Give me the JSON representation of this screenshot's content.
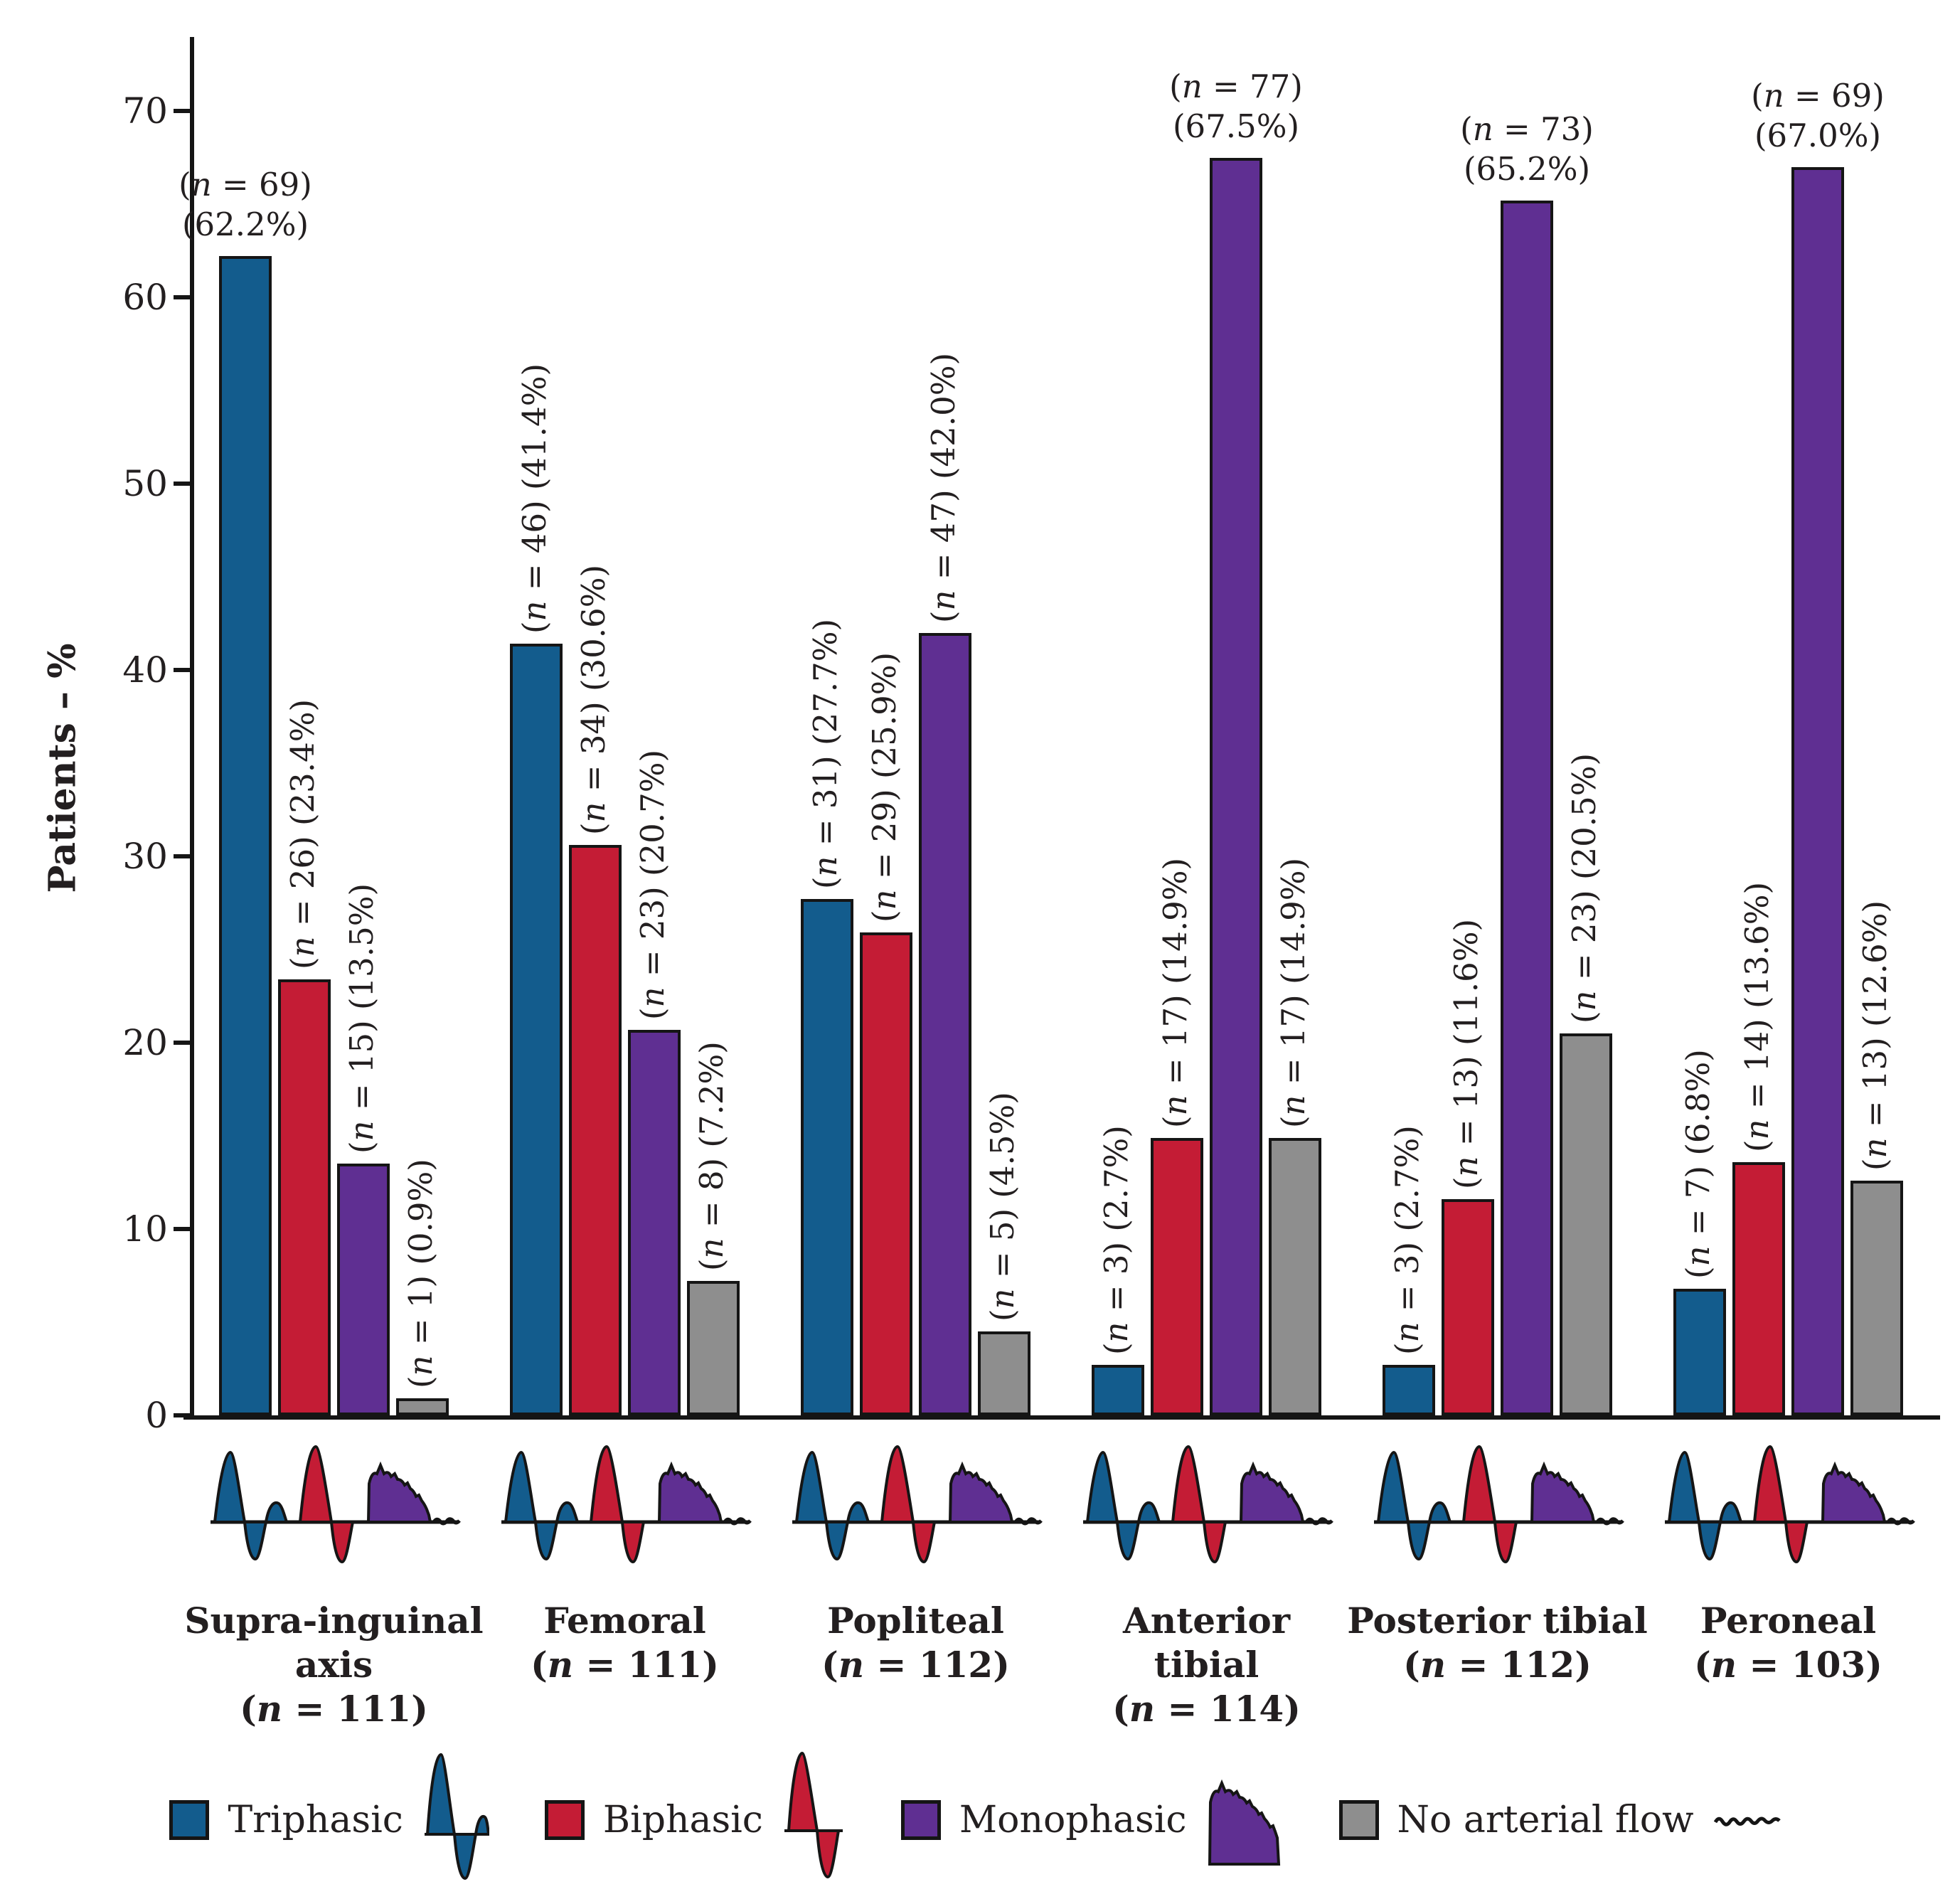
{
  "figure": {
    "ylabel": "Patients – %"
  },
  "chart_data": {
    "type": "bar",
    "title": "",
    "xlabel": "",
    "ylabel": "Patients – %",
    "ylim": [
      0,
      73.5
    ],
    "yticks": [
      0,
      10,
      20,
      30,
      40,
      50,
      60,
      70
    ],
    "grid": false,
    "legend_position": "bottom",
    "series": [
      "Triphasic",
      "Biphasic",
      "Monophasic",
      "No arterial flow"
    ],
    "colors": {
      "Triphasic": "#135C8D",
      "Biphasic": "#C41C35",
      "Monophasic": "#5F2F92",
      "No arterial flow": "#8E8E8E",
      "outline": "#151515",
      "text": "#231F20",
      "background": "#FFFFFF"
    },
    "groups": [
      {
        "label_lines": [
          "Supra-inguinal",
          "axis",
          "(n = 111)"
        ],
        "n_total": 111,
        "bars": [
          {
            "series": "Triphasic",
            "n": 69,
            "value": 62.2,
            "annotation": "(n = 69) (62.2%)",
            "orientation": "horizontal"
          },
          {
            "series": "Biphasic",
            "n": 26,
            "value": 23.4,
            "annotation": "(n = 26) (23.4%)",
            "orientation": "vertical"
          },
          {
            "series": "Monophasic",
            "n": 15,
            "value": 13.5,
            "annotation": "(n = 15) (13.5%)",
            "orientation": "vertical"
          },
          {
            "series": "No arterial flow",
            "n": 1,
            "value": 0.9,
            "annotation": "(n = 1) (0.9%)",
            "orientation": "vertical"
          }
        ]
      },
      {
        "label_lines": [
          "Femoral",
          "(n = 111)"
        ],
        "n_total": 111,
        "bars": [
          {
            "series": "Triphasic",
            "n": 46,
            "value": 41.4,
            "annotation": "(n = 46) (41.4%)",
            "orientation": "vertical"
          },
          {
            "series": "Biphasic",
            "n": 34,
            "value": 30.6,
            "annotation": "(n = 34) (30.6%)",
            "orientation": "vertical"
          },
          {
            "series": "Monophasic",
            "n": 23,
            "value": 20.7,
            "annotation": "(n = 23) (20.7%)",
            "orientation": "vertical"
          },
          {
            "series": "No arterial flow",
            "n": 8,
            "value": 7.2,
            "annotation": "(n = 8) (7.2%)",
            "orientation": "vertical"
          }
        ]
      },
      {
        "label_lines": [
          "Popliteal",
          "(n = 112)"
        ],
        "n_total": 112,
        "bars": [
          {
            "series": "Triphasic",
            "n": 31,
            "value": 27.7,
            "annotation": "(n = 31) (27.7%)",
            "orientation": "vertical"
          },
          {
            "series": "Biphasic",
            "n": 29,
            "value": 25.9,
            "annotation": "(n = 29) (25.9%)",
            "orientation": "vertical"
          },
          {
            "series": "Monophasic",
            "n": 47,
            "value": 42.0,
            "annotation": "(n = 47) (42.0%)",
            "orientation": "vertical"
          },
          {
            "series": "No arterial flow",
            "n": 5,
            "value": 4.5,
            "annotation": "(n = 5) (4.5%)",
            "orientation": "vertical"
          }
        ]
      },
      {
        "label_lines": [
          "Anterior",
          "tibial",
          "(n = 114)"
        ],
        "n_total": 114,
        "bars": [
          {
            "series": "Triphasic",
            "n": 3,
            "value": 2.7,
            "annotation": "(n = 3) (2.7%)",
            "orientation": "vertical"
          },
          {
            "series": "Biphasic",
            "n": 17,
            "value": 14.9,
            "annotation": "(n = 17) (14.9%)",
            "orientation": "vertical"
          },
          {
            "series": "Monophasic",
            "n": 77,
            "value": 67.5,
            "annotation": "(n = 77) (67.5%)",
            "orientation": "horizontal"
          },
          {
            "series": "No arterial flow",
            "n": 17,
            "value": 14.9,
            "annotation": "(n = 17) (14.9%)",
            "orientation": "vertical"
          }
        ]
      },
      {
        "label_lines": [
          "Posterior tibial",
          "(n = 112)"
        ],
        "n_total": 112,
        "bars": [
          {
            "series": "Triphasic",
            "n": 3,
            "value": 2.7,
            "annotation": "(n = 3) (2.7%)",
            "orientation": "vertical"
          },
          {
            "series": "Biphasic",
            "n": 13,
            "value": 11.6,
            "annotation": "(n = 13) (11.6%)",
            "orientation": "vertical"
          },
          {
            "series": "Monophasic",
            "n": 73,
            "value": 65.2,
            "annotation": "(n = 73) (65.2%)",
            "orientation": "horizontal"
          },
          {
            "series": "No arterial flow",
            "n": 23,
            "value": 20.5,
            "annotation": "(n = 23) (20.5%)",
            "orientation": "vertical"
          }
        ]
      },
      {
        "label_lines": [
          "Peroneal",
          "(n = 103)"
        ],
        "n_total": 103,
        "bars": [
          {
            "series": "Triphasic",
            "n": 7,
            "value": 6.8,
            "annotation": "(n = 7) (6.8%)",
            "orientation": "vertical"
          },
          {
            "series": "Biphasic",
            "n": 14,
            "value": 13.6,
            "annotation": "(n = 14) (13.6%)",
            "orientation": "vertical"
          },
          {
            "series": "Monophasic",
            "n": 69,
            "value": 67.0,
            "annotation": "(n = 69) (67.0%)",
            "orientation": "horizontal"
          },
          {
            "series": "No arterial flow",
            "n": 13,
            "value": 12.6,
            "annotation": "(n = 13) (12.6%)",
            "orientation": "vertical"
          }
        ]
      }
    ],
    "legend": [
      {
        "label": "Triphasic",
        "icon": "triphasic-wave"
      },
      {
        "label": "Biphasic",
        "icon": "biphasic-wave"
      },
      {
        "label": "Monophasic",
        "icon": "monophasic-wave"
      },
      {
        "label": "No arterial flow",
        "icon": "flat-line"
      }
    ]
  }
}
